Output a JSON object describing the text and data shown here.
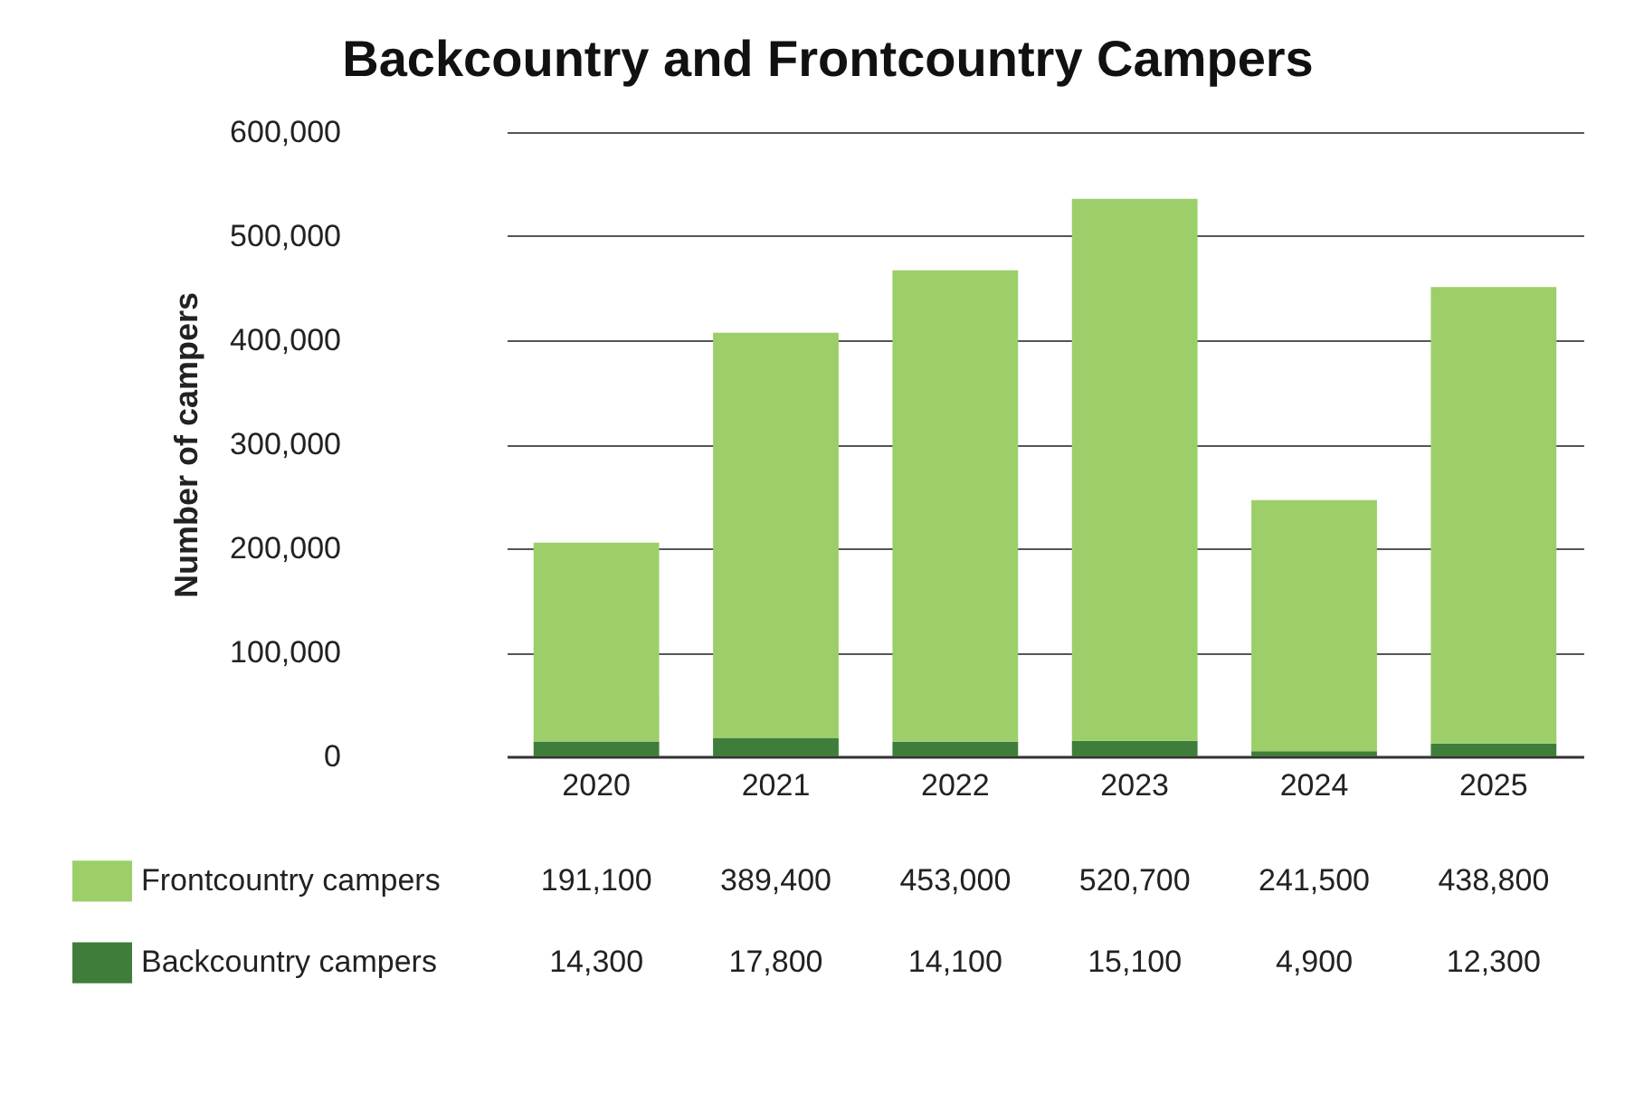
{
  "chart_data": {
    "type": "bar",
    "title": "Backcountry and Frontcountry Campers",
    "ylabel": "Number of campers",
    "categories": [
      "2020",
      "2021",
      "2022",
      "2023",
      "2024",
      "2025"
    ],
    "stacked": true,
    "legend": "bottom",
    "grid": "y",
    "ylim": [
      0,
      600000
    ],
    "yticks": [
      0,
      {
        "value": 100000,
        "label": "100,000"
      },
      {
        "value": 200000,
        "label": "200,000"
      },
      {
        "value": 300000,
        "label": "300,000"
      },
      {
        "value": 400000,
        "label": "400,000"
      },
      {
        "value": 500000,
        "label": "500,000"
      },
      {
        "value": 600000,
        "label": "600,000"
      }
    ],
    "series": [
      {
        "name": "Backcountry campers",
        "color": "#3f7d3b",
        "values": [
          14300,
          17800,
          14100,
          15100,
          4900,
          12300
        ],
        "value_labels": [
          "14,300",
          "17,800",
          "14,100",
          "15,100",
          "4,900",
          "12,300"
        ]
      },
      {
        "name": "Frontcountry campers",
        "color": "#9ccf6a",
        "values": [
          191100,
          389400,
          453000,
          520700,
          241500,
          438800
        ],
        "value_labels": [
          "191,100",
          "389,400",
          "453,000",
          "520,700",
          "241,500",
          "438,800"
        ]
      }
    ]
  }
}
